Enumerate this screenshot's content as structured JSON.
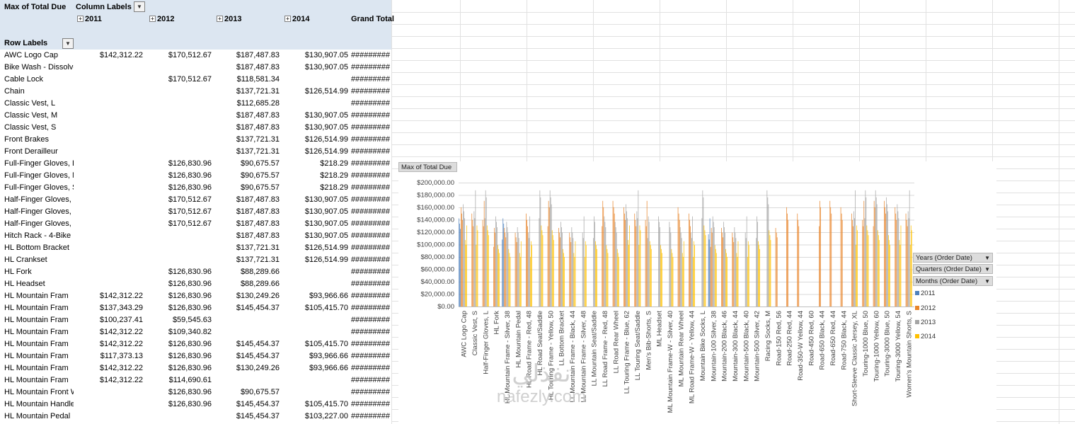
{
  "pivot": {
    "value_field": "Max of Total Due",
    "column_labels": "Column Labels",
    "row_labels": "Row Labels",
    "years": [
      "2011",
      "2012",
      "2013",
      "2014"
    ],
    "grand_total": "Grand Total",
    "rows": [
      {
        "label": "AWC Logo Cap",
        "v2011": "$142,312.22",
        "v2012": "$170,512.67",
        "v2013": "$187,487.83",
        "v2014": "$130,907.05",
        "gt": "#########"
      },
      {
        "label": "Bike Wash - Dissolver",
        "v2011": "",
        "v2012": "",
        "v2013": "$187,487.83",
        "v2014": "$130,907.05",
        "gt": "#########"
      },
      {
        "label": "Cable Lock",
        "v2011": "",
        "v2012": "$170,512.67",
        "v2013": "$118,581.34",
        "v2014": "",
        "gt": "#########"
      },
      {
        "label": "Chain",
        "v2011": "",
        "v2012": "",
        "v2013": "$137,721.31",
        "v2014": "$126,514.99",
        "gt": "#########"
      },
      {
        "label": "Classic Vest, L",
        "v2011": "",
        "v2012": "",
        "v2013": "$112,685.28",
        "v2014": "",
        "gt": "#########"
      },
      {
        "label": "Classic Vest, M",
        "v2011": "",
        "v2012": "",
        "v2013": "$187,487.83",
        "v2014": "$130,907.05",
        "gt": "#########"
      },
      {
        "label": "Classic Vest, S",
        "v2011": "",
        "v2012": "",
        "v2013": "$187,487.83",
        "v2014": "$130,907.05",
        "gt": "#########"
      },
      {
        "label": "Front Brakes",
        "v2011": "",
        "v2012": "",
        "v2013": "$137,721.31",
        "v2014": "$126,514.99",
        "gt": "#########"
      },
      {
        "label": "Front Derailleur",
        "v2011": "",
        "v2012": "",
        "v2013": "$137,721.31",
        "v2014": "$126,514.99",
        "gt": "#########"
      },
      {
        "label": "Full-Finger Gloves, L",
        "v2011": "",
        "v2012": "$126,830.96",
        "v2013": "$90,675.57",
        "v2014": "$218.29",
        "gt": "#########"
      },
      {
        "label": "Full-Finger Gloves, M",
        "v2011": "",
        "v2012": "$126,830.96",
        "v2013": "$90,675.57",
        "v2014": "$218.29",
        "gt": "#########"
      },
      {
        "label": "Full-Finger Gloves, S",
        "v2011": "",
        "v2012": "$126,830.96",
        "v2013": "$90,675.57",
        "v2014": "$218.29",
        "gt": "#########"
      },
      {
        "label": "Half-Finger Gloves, L",
        "v2011": "",
        "v2012": "$170,512.67",
        "v2013": "$187,487.83",
        "v2014": "$130,907.05",
        "gt": "#########"
      },
      {
        "label": "Half-Finger Gloves, M",
        "v2011": "",
        "v2012": "$170,512.67",
        "v2013": "$187,487.83",
        "v2014": "$130,907.05",
        "gt": "#########"
      },
      {
        "label": "Half-Finger Gloves, S",
        "v2011": "",
        "v2012": "$170,512.67",
        "v2013": "$187,487.83",
        "v2014": "$130,907.05",
        "gt": "#########"
      },
      {
        "label": "Hitch Rack - 4-Bike",
        "v2011": "",
        "v2012": "",
        "v2013": "$187,487.83",
        "v2014": "$130,907.05",
        "gt": "#########"
      },
      {
        "label": "HL Bottom Bracket",
        "v2011": "",
        "v2012": "",
        "v2013": "$137,721.31",
        "v2014": "$126,514.99",
        "gt": "#########"
      },
      {
        "label": "HL Crankset",
        "v2011": "",
        "v2012": "",
        "v2013": "$137,721.31",
        "v2014": "$126,514.99",
        "gt": "#########"
      },
      {
        "label": "HL Fork",
        "v2011": "",
        "v2012": "$126,830.96",
        "v2013": "$88,289.66",
        "v2014": "",
        "gt": "#########"
      },
      {
        "label": "HL Headset",
        "v2011": "",
        "v2012": "$126,830.96",
        "v2013": "$88,289.66",
        "v2014": "",
        "gt": "#########"
      },
      {
        "label": "HL Mountain Fram",
        "v2011": "$142,312.22",
        "v2012": "$126,830.96",
        "v2013": "$130,249.26",
        "v2014": "$93,966.66",
        "gt": "#########"
      },
      {
        "label": "HL Mountain Fram",
        "v2011": "$137,343.29",
        "v2012": "$126,830.96",
        "v2013": "$145,454.37",
        "v2014": "$105,415.70",
        "gt": "#########"
      },
      {
        "label": "HL Mountain Fram",
        "v2011": "$100,237.41",
        "v2012": "$59,545.63",
        "v2013": "",
        "v2014": "",
        "gt": "#########"
      },
      {
        "label": "HL Mountain Fram",
        "v2011": "$142,312.22",
        "v2012": "$109,340.82",
        "v2013": "",
        "v2014": "",
        "gt": "#########"
      },
      {
        "label": "HL Mountain Fram",
        "v2011": "$142,312.22",
        "v2012": "$126,830.96",
        "v2013": "$145,454.37",
        "v2014": "$105,415.70",
        "gt": "#########"
      },
      {
        "label": "HL Mountain Fram",
        "v2011": "$117,373.13",
        "v2012": "$126,830.96",
        "v2013": "$145,454.37",
        "v2014": "$93,966.66",
        "gt": "#########"
      },
      {
        "label": "HL Mountain Fram",
        "v2011": "$142,312.22",
        "v2012": "$126,830.96",
        "v2013": "$130,249.26",
        "v2014": "$93,966.66",
        "gt": "#########"
      },
      {
        "label": "HL Mountain Fram",
        "v2011": "$142,312.22",
        "v2012": "$114,690.61",
        "v2013": "",
        "v2014": "",
        "gt": "#########"
      },
      {
        "label": "HL Mountain Front Wheel",
        "v2011": "",
        "v2012": "$126,830.96",
        "v2013": "$90,675.57",
        "v2014": "",
        "gt": "#########"
      },
      {
        "label": "HL Mountain Handlebars",
        "v2011": "",
        "v2012": "$126,830.96",
        "v2013": "$145,454.37",
        "v2014": "$105,415.70",
        "gt": "#########"
      },
      {
        "label": "HL Mountain Pedal",
        "v2011": "",
        "v2012": "",
        "v2013": "$145,454.37",
        "v2014": "$103,227.00",
        "gt": "#########"
      }
    ]
  },
  "chart": {
    "fields": [
      "Years (Order Date)",
      "Quarters (Order Date)",
      "Months (Order Date)"
    ],
    "colors": {
      "2011": "#4f81bd",
      "2012": "#e8852b",
      "2013": "#a5a5a5",
      "2014": "#ffc000"
    }
  },
  "watermark": {
    "arabic": "نفذلي",
    "latin": "nafezly.com"
  },
  "chart_data": {
    "type": "bar",
    "title": "Max of Total Due",
    "ylim": [
      0,
      200000
    ],
    "yticks": [
      "$0.00",
      "$20,000.00",
      "$40,000.00",
      "$60,000.00",
      "$80,000.00",
      "$100,000.00",
      "$120,000.00",
      "$140,000.00",
      "$160,000.00",
      "$180,000.00",
      "$200,000.00"
    ],
    "categories": [
      "AWC Logo Cap",
      "Classic Vest, S",
      "Half-Finger Gloves, L",
      "HL Fork",
      "HL Mountain Frame - Silver, 38",
      "HL Mountain Pedal",
      "HL Road Frame - Red, 48",
      "HL Road Seat/Saddle",
      "HL Touring Frame - Yellow, 50",
      "LL Bottom Bracket",
      "LL Mountain Frame - Black, 44",
      "LL Mountain Frame - Silver, 48",
      "LL Mountain Seat/Saddle",
      "LL Road Frame - Red, 48",
      "LL Road Rear Wheel",
      "LL Touring Frame - Blue, 62",
      "LL Touring Seat/Saddle",
      "Men's Bib-Shorts, S",
      "ML Headset",
      "ML Mountain Frame-W - Silver, 40",
      "ML Mountain Rear Wheel",
      "ML Road Frame-W - Yellow, 44",
      "Mountain Bike Socks, L",
      "Mountain-100 Silver, 38",
      "Mountain-200 Black, 46",
      "Mountain-300 Black, 44",
      "Mountain-500 Black, 40",
      "Mountain-500 Silver, 42",
      "Racing Socks, M",
      "Road-150 Red, 56",
      "Road-250 Red, 44",
      "Road-350-W Yellow, 44",
      "Road-450 Red, 60",
      "Road-650 Black, 44",
      "Road-650 Red, 44",
      "Road-750 Black, 44",
      "Short-Sleeve Classic Jersey, XL",
      "Touring-1000 Blue, 50",
      "Touring-1000 Yellow, 60",
      "Touring-3000 Blue, 50",
      "Touring-3000 Yellow, 54",
      "Women's Mountain Shorts, S"
    ],
    "series": [
      {
        "name": "2011",
        "values": [
          142312,
          0,
          0,
          0,
          142312,
          0,
          0,
          0,
          0,
          0,
          0,
          0,
          0,
          0,
          0,
          0,
          0,
          0,
          0,
          0,
          0,
          0,
          0,
          142312,
          0,
          0,
          0,
          0,
          0,
          0,
          0,
          0,
          0,
          0,
          0,
          0,
          0,
          0,
          0,
          0,
          0,
          0
        ]
      },
      {
        "name": "2012",
        "values": [
          170513,
          170513,
          170513,
          126831,
          126831,
          126831,
          170513,
          0,
          170513,
          126831,
          126831,
          0,
          0,
          170513,
          170513,
          170513,
          170513,
          170513,
          0,
          0,
          170513,
          170513,
          0,
          126831,
          126831,
          126831,
          0,
          0,
          0,
          126831,
          170513,
          170513,
          0,
          170513,
          170513,
          170513,
          170513,
          170513,
          170513,
          170513,
          170513,
          170513
        ]
      },
      {
        "name": "2013",
        "values": [
          187488,
          187488,
          187488,
          145454,
          145454,
          145454,
          145454,
          187488,
          187488,
          145454,
          145454,
          145454,
          145454,
          145454,
          145454,
          187488,
          187488,
          145454,
          145454,
          145454,
          145454,
          145454,
          187488,
          145454,
          145454,
          145454,
          145454,
          145454,
          187488,
          0,
          0,
          0,
          0,
          0,
          0,
          0,
          187488,
          187488,
          187488,
          187488,
          187488,
          187488
        ]
      },
      {
        "name": "2014",
        "values": [
          130907,
          130907,
          130907,
          105416,
          105416,
          105416,
          105416,
          130907,
          130907,
          105416,
          105416,
          105416,
          105416,
          105416,
          105416,
          130907,
          130907,
          105416,
          105416,
          105416,
          105416,
          105416,
          130907,
          105416,
          105416,
          105416,
          105416,
          105416,
          130907,
          0,
          0,
          0,
          0,
          0,
          0,
          0,
          130907,
          130907,
          130907,
          130907,
          130907,
          130907
        ]
      }
    ]
  }
}
